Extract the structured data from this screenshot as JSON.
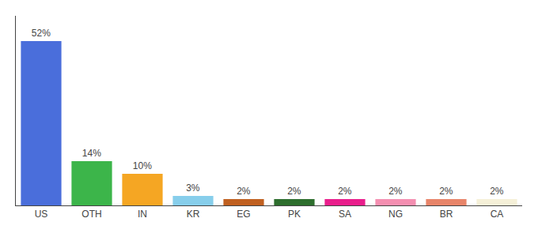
{
  "chart_data": {
    "type": "bar",
    "categories": [
      "US",
      "OTH",
      "IN",
      "KR",
      "EG",
      "PK",
      "SA",
      "NG",
      "BR",
      "CA"
    ],
    "values": [
      52,
      14,
      10,
      3,
      2,
      2,
      2,
      2,
      2,
      2
    ],
    "value_labels": [
      "52%",
      "14%",
      "10%",
      "3%",
      "2%",
      "2%",
      "2%",
      "2%",
      "2%",
      "2%"
    ],
    "colors": [
      "#4a6edb",
      "#3cb54a",
      "#f5a623",
      "#87ceeb",
      "#c06020",
      "#2d6e2d",
      "#e91e8c",
      "#f48fb1",
      "#e8856a",
      "#f5f0d8"
    ],
    "ylim": [
      0,
      60
    ],
    "data_labels": true,
    "tick_labels": "x",
    "grid": false
  }
}
